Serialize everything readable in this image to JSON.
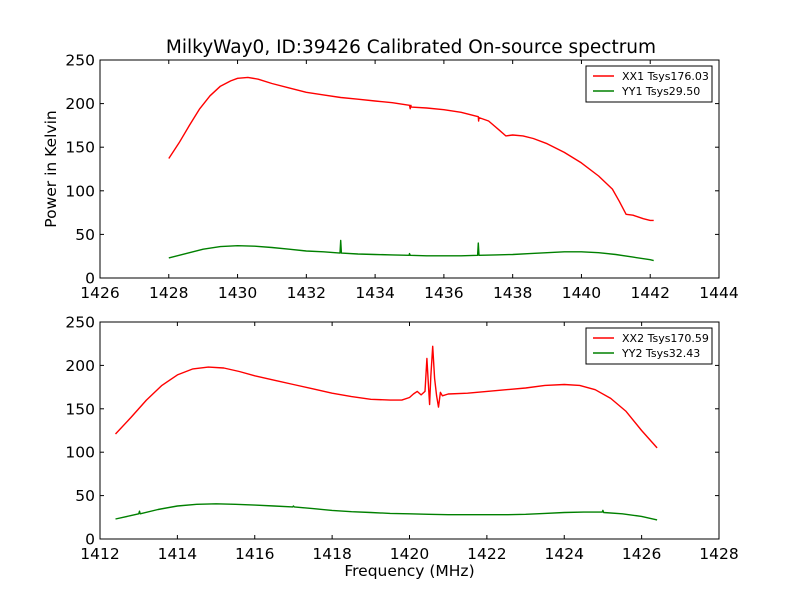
{
  "title": "MilkyWay0, ID:39426 Calibrated On-source spectrum",
  "chart_data": [
    {
      "type": "line",
      "ylabel": "Power in Kelvin",
      "xlabel": "",
      "xlim": [
        1426,
        1444
      ],
      "ylim": [
        0,
        250
      ],
      "xticks": [
        "1426",
        "1428",
        "1430",
        "1432",
        "1434",
        "1436",
        "1438",
        "1440",
        "1442",
        "1444"
      ],
      "yticks": [
        "0",
        "50",
        "100",
        "150",
        "200",
        "250"
      ],
      "legend_position": "top-right",
      "series": [
        {
          "name": "XX1 Tsys176.03",
          "color": "#ff0000",
          "points": [
            [
              1428,
              137
            ],
            [
              1428.3,
              155
            ],
            [
              1428.6,
              175
            ],
            [
              1428.9,
              194
            ],
            [
              1429.2,
              209
            ],
            [
              1429.5,
              220
            ],
            [
              1429.8,
              226
            ],
            [
              1430,
              229
            ],
            [
              1430.3,
              230
            ],
            [
              1430.6,
              228
            ],
            [
              1431,
              223
            ],
            [
              1431.5,
              218
            ],
            [
              1432,
              213
            ],
            [
              1432.5,
              210
            ],
            [
              1433,
              207
            ],
            [
              1433.5,
              205
            ],
            [
              1434,
              203
            ],
            [
              1434.5,
              201
            ],
            [
              1435,
              198
            ],
            [
              1435.02,
              194
            ],
            [
              1435.04,
              198
            ],
            [
              1435.05,
              196
            ],
            [
              1435.5,
              195
            ],
            [
              1436,
              193
            ],
            [
              1436.5,
              190
            ],
            [
              1436.9,
              186
            ],
            [
              1437,
              185
            ],
            [
              1437.01,
              180
            ],
            [
              1437.02,
              184
            ],
            [
              1437.3,
              180
            ],
            [
              1437.6,
              170
            ],
            [
              1437.8,
              163
            ],
            [
              1438,
              164
            ],
            [
              1438.3,
              163
            ],
            [
              1438.6,
              160
            ],
            [
              1439,
              154
            ],
            [
              1439.5,
              144
            ],
            [
              1440,
              132
            ],
            [
              1440.5,
              117
            ],
            [
              1440.9,
              102
            ],
            [
              1441.1,
              88
            ],
            [
              1441.3,
              73
            ],
            [
              1441.5,
              72
            ],
            [
              1441.8,
              68
            ],
            [
              1442,
              66
            ],
            [
              1442.1,
              66
            ]
          ]
        },
        {
          "name": "YY1 Tsys29.50",
          "color": "#008000",
          "points": [
            [
              1428,
              23
            ],
            [
              1428.5,
              28
            ],
            [
              1429,
              33
            ],
            [
              1429.5,
              36
            ],
            [
              1430,
              37
            ],
            [
              1430.5,
              36.5
            ],
            [
              1431,
              35
            ],
            [
              1431.5,
              33
            ],
            [
              1432,
              31
            ],
            [
              1432.5,
              30
            ],
            [
              1432.98,
              28.5
            ],
            [
              1433,
              43
            ],
            [
              1433.02,
              28.5
            ],
            [
              1433.5,
              27.5
            ],
            [
              1434,
              27
            ],
            [
              1434.5,
              26.5
            ],
            [
              1434.99,
              26
            ],
            [
              1435,
              28
            ],
            [
              1435.02,
              26
            ],
            [
              1435.5,
              25.5
            ],
            [
              1436,
              25.5
            ],
            [
              1436.5,
              25.5
            ],
            [
              1436.98,
              26
            ],
            [
              1437,
              40
            ],
            [
              1437.02,
              26
            ],
            [
              1437.5,
              26.5
            ],
            [
              1438,
              27
            ],
            [
              1438.5,
              28
            ],
            [
              1439,
              29
            ],
            [
              1439.5,
              30
            ],
            [
              1440,
              30
            ],
            [
              1440.5,
              29
            ],
            [
              1441,
              27
            ],
            [
              1441.5,
              24
            ],
            [
              1442,
              21
            ],
            [
              1442.1,
              20
            ]
          ]
        }
      ]
    },
    {
      "type": "line",
      "ylabel": "",
      "xlabel": "Frequency (MHz)",
      "xlim": [
        1412,
        1428
      ],
      "ylim": [
        0,
        250
      ],
      "xticks": [
        "1412",
        "1414",
        "1416",
        "1418",
        "1420",
        "1422",
        "1424",
        "1426",
        "1428"
      ],
      "yticks": [
        "0",
        "50",
        "100",
        "150",
        "200",
        "250"
      ],
      "legend_position": "top-right",
      "series": [
        {
          "name": "XX2 Tsys170.59",
          "color": "#ff0000",
          "points": [
            [
              1412.4,
              121
            ],
            [
              1412.8,
              140
            ],
            [
              1413.2,
              160
            ],
            [
              1413.6,
              177
            ],
            [
              1414,
              189
            ],
            [
              1414.4,
              196
            ],
            [
              1414.8,
              198
            ],
            [
              1415.2,
              197
            ],
            [
              1415.6,
              193
            ],
            [
              1416,
              188
            ],
            [
              1416.5,
              183
            ],
            [
              1417,
              178
            ],
            [
              1417.5,
              173
            ],
            [
              1418,
              168
            ],
            [
              1418.5,
              164
            ],
            [
              1419,
              161
            ],
            [
              1419.5,
              160
            ],
            [
              1419.8,
              160
            ],
            [
              1420,
              163
            ],
            [
              1420.1,
              167
            ],
            [
              1420.2,
              170
            ],
            [
              1420.3,
              166
            ],
            [
              1420.4,
              170
            ],
            [
              1420.45,
              208
            ],
            [
              1420.5,
              170
            ],
            [
              1420.52,
              155
            ],
            [
              1420.55,
              187
            ],
            [
              1420.6,
              222
            ],
            [
              1420.65,
              185
            ],
            [
              1420.7,
              165
            ],
            [
              1420.75,
              152
            ],
            [
              1420.8,
              169
            ],
            [
              1420.85,
              165
            ],
            [
              1421,
              167
            ],
            [
              1421.5,
              168
            ],
            [
              1422,
              170
            ],
            [
              1422.5,
              172
            ],
            [
              1423,
              174
            ],
            [
              1423.5,
              177
            ],
            [
              1424,
              178
            ],
            [
              1424.4,
              177
            ],
            [
              1424.8,
              172
            ],
            [
              1425.2,
              162
            ],
            [
              1425.6,
              147
            ],
            [
              1426,
              125
            ],
            [
              1426.4,
              105
            ]
          ]
        },
        {
          "name": "YY2 Tsys32.43",
          "color": "#008000",
          "points": [
            [
              1412.4,
              23
            ],
            [
              1412.8,
              27
            ],
            [
              1413,
              29
            ],
            [
              1413.02,
              32
            ],
            [
              1413.04,
              29
            ],
            [
              1413.5,
              34
            ],
            [
              1414,
              38
            ],
            [
              1414.5,
              40
            ],
            [
              1415,
              40.5
            ],
            [
              1415.5,
              40
            ],
            [
              1416,
              39
            ],
            [
              1416.5,
              38
            ],
            [
              1416.98,
              37
            ],
            [
              1417,
              38
            ],
            [
              1417.02,
              37
            ],
            [
              1417.5,
              35
            ],
            [
              1418,
              33
            ],
            [
              1418.5,
              31.5
            ],
            [
              1419,
              30.5
            ],
            [
              1419.5,
              29.5
            ],
            [
              1420,
              29
            ],
            [
              1420.5,
              28.5
            ],
            [
              1421,
              28
            ],
            [
              1421.5,
              28
            ],
            [
              1422,
              28
            ],
            [
              1422.5,
              28
            ],
            [
              1423,
              28.5
            ],
            [
              1423.5,
              29.5
            ],
            [
              1424,
              30.5
            ],
            [
              1424.5,
              31
            ],
            [
              1424.98,
              31
            ],
            [
              1425,
              33
            ],
            [
              1425.02,
              30.5
            ],
            [
              1425.5,
              29
            ],
            [
              1426,
              26
            ],
            [
              1426.4,
              22
            ]
          ]
        }
      ]
    }
  ]
}
